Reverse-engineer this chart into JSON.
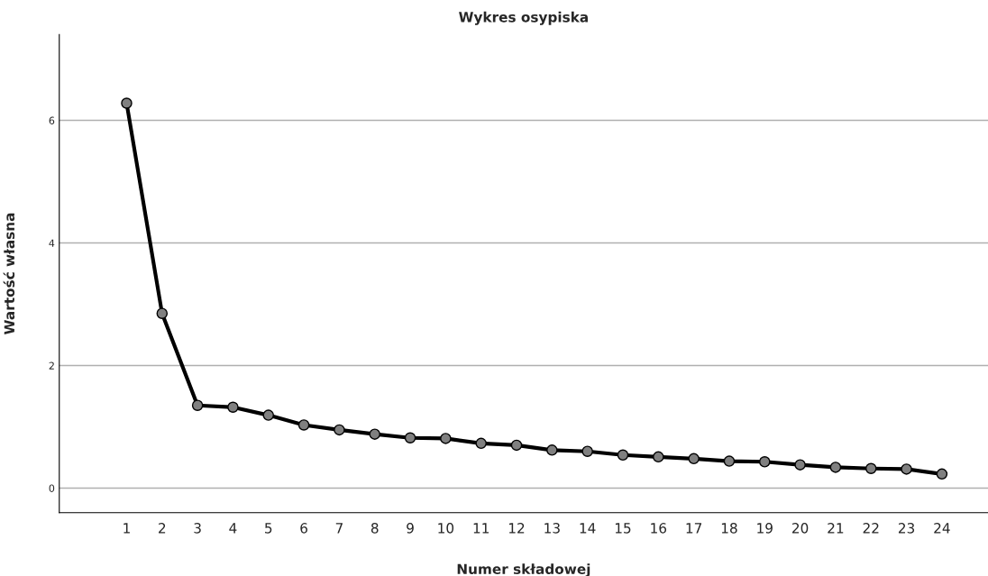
{
  "chart_data": {
    "type": "line",
    "title": "Wykres osypiska",
    "xlabel": "Numer składowej",
    "ylabel": "Wartość własna",
    "categories": [
      "1",
      "2",
      "3",
      "4",
      "5",
      "6",
      "7",
      "8",
      "9",
      "10",
      "11",
      "12",
      "13",
      "14",
      "15",
      "16",
      "17",
      "18",
      "19",
      "20",
      "21",
      "22",
      "23",
      "24"
    ],
    "series": [
      {
        "color": "#000000",
        "values": [
          6.28,
          2.85,
          1.35,
          1.32,
          1.19,
          1.03,
          0.95,
          0.88,
          0.82,
          0.81,
          0.73,
          0.7,
          0.62,
          0.6,
          0.54,
          0.51,
          0.48,
          0.44,
          0.43,
          0.38,
          0.34,
          0.32,
          0.31,
          0.23
        ]
      }
    ],
    "ylim": [
      -0.4,
      7.4
    ],
    "yticks": [
      0,
      2,
      4,
      6
    ],
    "grid": "y",
    "marker": "circle",
    "line_style": "solid",
    "legend": false
  }
}
